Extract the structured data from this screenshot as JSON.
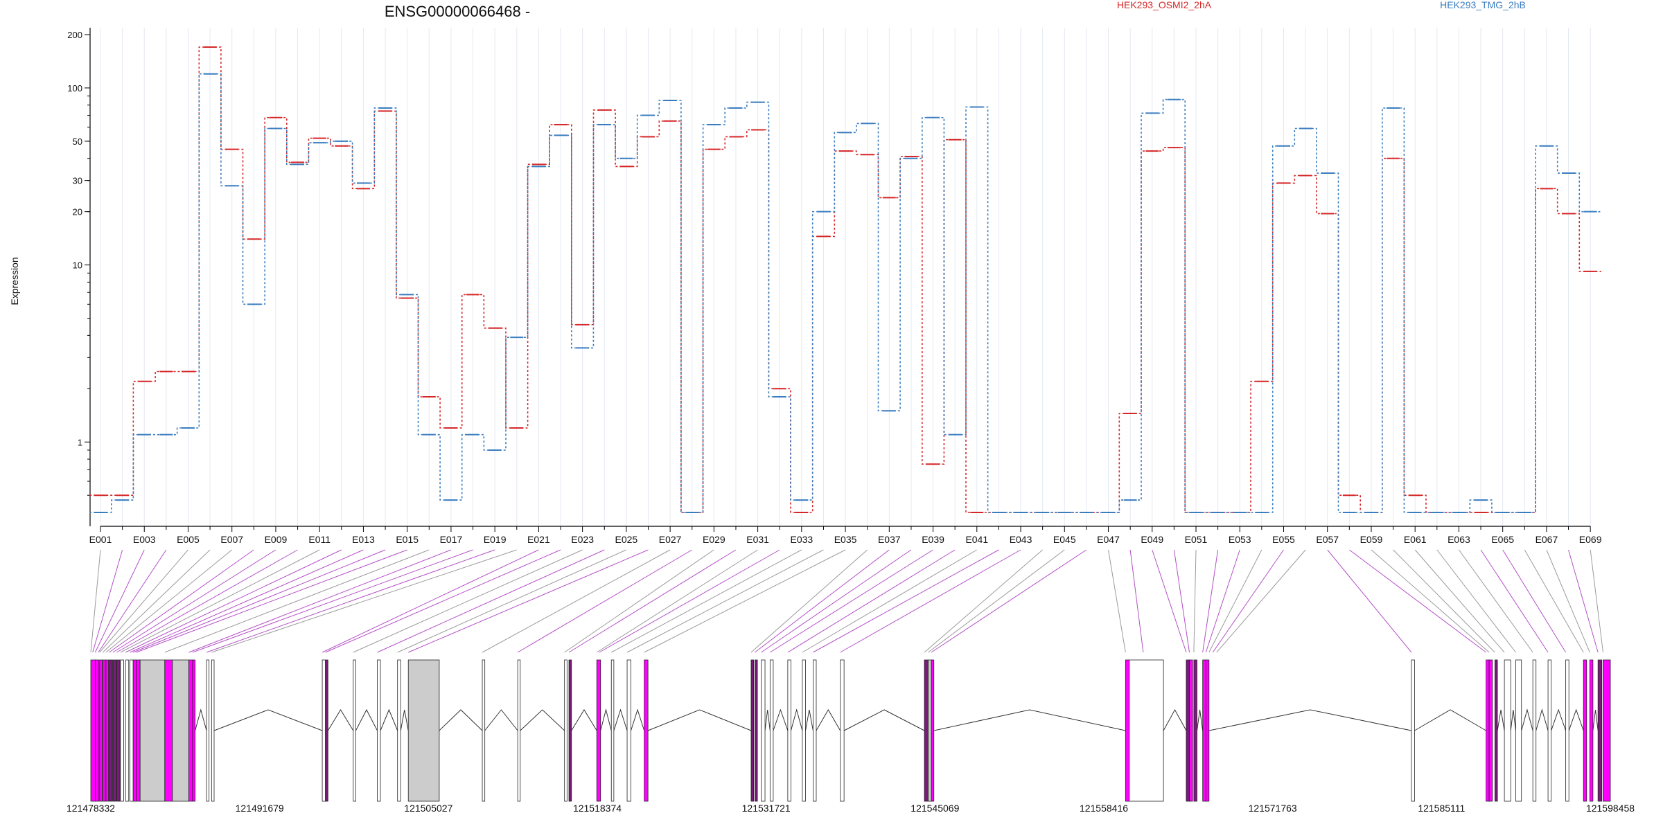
{
  "chart_data": {
    "type": "line",
    "title": "ENSG00000066468 -",
    "ylabel": "Expression",
    "yscale": "log",
    "ylim": [
      0.4,
      200
    ],
    "yticks": [
      1,
      10,
      20,
      30,
      50,
      100,
      200
    ],
    "legend_position": "top-right",
    "series": [
      {
        "name": "HEK293_OSMI2_2hA",
        "color": "#d62728",
        "values": [
          0.5,
          0.5,
          2.2,
          2.5,
          2.5,
          170,
          45,
          14,
          68,
          38,
          52,
          47,
          27,
          74,
          6.5,
          1.8,
          1.2,
          6.8,
          4.4,
          1.2,
          37,
          62,
          4.6,
          75,
          36,
          53,
          65,
          0.4,
          45,
          53,
          58,
          2.0,
          0.4,
          14.5,
          44,
          42,
          24,
          41,
          0.75,
          51,
          0.4,
          0.4,
          0.4,
          0.4,
          0.4,
          0.4,
          0.4,
          1.45,
          44,
          46,
          0.4,
          0.4,
          0.4,
          2.2,
          29,
          32,
          19.5,
          0.5,
          0.4,
          40,
          0.5,
          0.4,
          0.4,
          0.4,
          0.4,
          0.4,
          27,
          19.5,
          9.2
        ]
      },
      {
        "name": "HEK293_TMG_2hB",
        "color": "#3a7dbf",
        "values": [
          0.4,
          0.47,
          1.1,
          1.1,
          1.2,
          120,
          28,
          6,
          59,
          37,
          49,
          50,
          29,
          77,
          6.8,
          1.1,
          0.47,
          1.1,
          0.9,
          3.9,
          36,
          54,
          3.4,
          62,
          40,
          70,
          85,
          0.4,
          62,
          77,
          83,
          1.8,
          0.47,
          20,
          56,
          63,
          1.5,
          40,
          68,
          1.1,
          78,
          0.4,
          0.4,
          0.4,
          0.4,
          0.4,
          0.4,
          0.47,
          72,
          86,
          0.4,
          0.4,
          0.4,
          0.4,
          47,
          59,
          33,
          0.4,
          0.4,
          77,
          0.4,
          0.4,
          0.4,
          0.47,
          0.4,
          0.4,
          47,
          33,
          20
        ]
      }
    ],
    "exon_labels": [
      "E001",
      "E003",
      "E005",
      "E007",
      "E009",
      "E011",
      "E013",
      "E015",
      "E017",
      "E019",
      "E021",
      "E023",
      "E025",
      "E027",
      "E029",
      "E031",
      "E033",
      "E035",
      "E037",
      "E039",
      "E041",
      "E043",
      "E045",
      "E047",
      "E049",
      "E051",
      "E053",
      "E055",
      "E057",
      "E059",
      "E061",
      "E063",
      "E065",
      "E067",
      "E069"
    ],
    "genomic_ticks": [
      "121478332",
      "121491679",
      "121505027",
      "121518374",
      "121531721",
      "121545069",
      "121558416",
      "121571763",
      "121585111",
      "121598458"
    ],
    "genomic_range": [
      121478332,
      121598458
    ],
    "gene_model": {
      "exons_bp": [
        [
          121478332,
          121478682,
          "m"
        ],
        [
          121478682,
          121478982,
          "m"
        ],
        [
          121479032,
          121479232,
          "m"
        ],
        [
          121479282,
          121479482,
          "m"
        ],
        [
          121479532,
          121479732,
          "m"
        ],
        [
          121479782,
          121480032,
          "d"
        ],
        [
          121480082,
          121480332,
          "d"
        ],
        [
          121480382,
          121480632,
          "d"
        ],
        [
          121480682,
          121480932,
          "w"
        ],
        [
          121481082,
          121481332,
          "w"
        ],
        [
          121481432,
          121481682,
          "w"
        ],
        [
          121481682,
          121481932,
          "m"
        ],
        [
          121481932,
          121482232,
          "m"
        ],
        [
          121482232,
          121484182,
          "g"
        ],
        [
          121484182,
          121484782,
          "m"
        ],
        [
          121484782,
          121486082,
          "g"
        ],
        [
          121486082,
          121486382,
          "m"
        ],
        [
          121486382,
          121486582,
          "m"
        ],
        [
          121487482,
          121487682,
          "w"
        ],
        [
          121487882,
          121488082,
          "w"
        ],
        [
          121496632,
          121496882,
          "w"
        ],
        [
          121496882,
          121497082,
          "d"
        ],
        [
          121499082,
          121499282,
          "w"
        ],
        [
          121500982,
          121501232,
          "w"
        ],
        [
          121502582,
          121502832,
          "w"
        ],
        [
          121503432,
          121505882,
          "g"
        ],
        [
          121509282,
          121509482,
          "w"
        ],
        [
          121512082,
          121512282,
          "w"
        ],
        [
          121515782,
          121515982,
          "w"
        ],
        [
          121516132,
          121516332,
          "d"
        ],
        [
          121518332,
          121518632,
          "m"
        ],
        [
          121519482,
          121519682,
          "w"
        ],
        [
          121520732,
          121521032,
          "w"
        ],
        [
          121522082,
          121522382,
          "m"
        ],
        [
          121530532,
          121530732,
          "d"
        ],
        [
          121530832,
          121531032,
          "d"
        ],
        [
          121531332,
          121531632,
          "w"
        ],
        [
          121532032,
          121532282,
          "w"
        ],
        [
          121533432,
          121533682,
          "w"
        ],
        [
          121534582,
          121534832,
          "w"
        ],
        [
          121535432,
          121535682,
          "w"
        ],
        [
          121537582,
          121537882,
          "w"
        ],
        [
          121544232,
          121544532,
          "d"
        ],
        [
          121544532,
          121544782,
          "g"
        ],
        [
          121544782,
          121544982,
          "m"
        ],
        [
          121560132,
          121560432,
          "m"
        ],
        [
          121560432,
          121563132,
          "w"
        ],
        [
          121564932,
          121565182,
          "d"
        ],
        [
          121565182,
          121565432,
          "m"
        ],
        [
          121565532,
          121565782,
          "d"
        ],
        [
          121566232,
          121566482,
          "m"
        ],
        [
          121566482,
          121566732,
          "m"
        ],
        [
          121582732,
          121582982,
          "w"
        ],
        [
          121588632,
          121588882,
          "m"
        ],
        [
          121588882,
          121589132,
          "m"
        ],
        [
          121589332,
          121589532,
          "d"
        ],
        [
          121590082,
          121590582,
          "w"
        ],
        [
          121590982,
          121591432,
          "w"
        ],
        [
          121592332,
          121592582,
          "w"
        ],
        [
          121593532,
          121593782,
          "w"
        ],
        [
          121594932,
          121595182,
          "w"
        ],
        [
          121596332,
          121596582,
          "m"
        ],
        [
          121596832,
          121597082,
          "m"
        ],
        [
          121597482,
          121597782,
          "d"
        ],
        [
          121597882,
          121598458,
          "m"
        ]
      ],
      "connector_targets_bp": [
        121478332,
        121478482,
        121478682,
        121478932,
        121479032,
        121479282,
        121479532,
        121479782,
        121480082,
        121480382,
        121480682,
        121481082,
        121481432,
        121481682,
        121481932,
        121484182,
        121486082,
        121486382,
        121487482,
        121487882,
        121496632,
        121496882,
        121499082,
        121500982,
        121502582,
        121503432,
        121509282,
        121512082,
        121515782,
        121516132,
        121518332,
        121518532,
        121519482,
        121520732,
        121522082,
        121530532,
        121530832,
        121531332,
        121532032,
        121533432,
        121534582,
        121535432,
        121537582,
        121544232,
        121544532,
        121544782,
        121560132,
        121561532,
        121564932,
        121565182,
        121565532,
        121566232,
        121566482,
        121566732,
        121567032,
        121567332,
        121582732,
        121588632,
        121588882,
        121589332,
        121590082,
        121590982,
        121592332,
        121593532,
        121594932,
        121596332,
        121596832,
        121597482,
        121597882
      ],
      "connector_colors": "gpppgggpppgppppgpppgppgpgpgpgpgpggggppppgppggpgpppgppgpgppgggggppggp"
    }
  }
}
